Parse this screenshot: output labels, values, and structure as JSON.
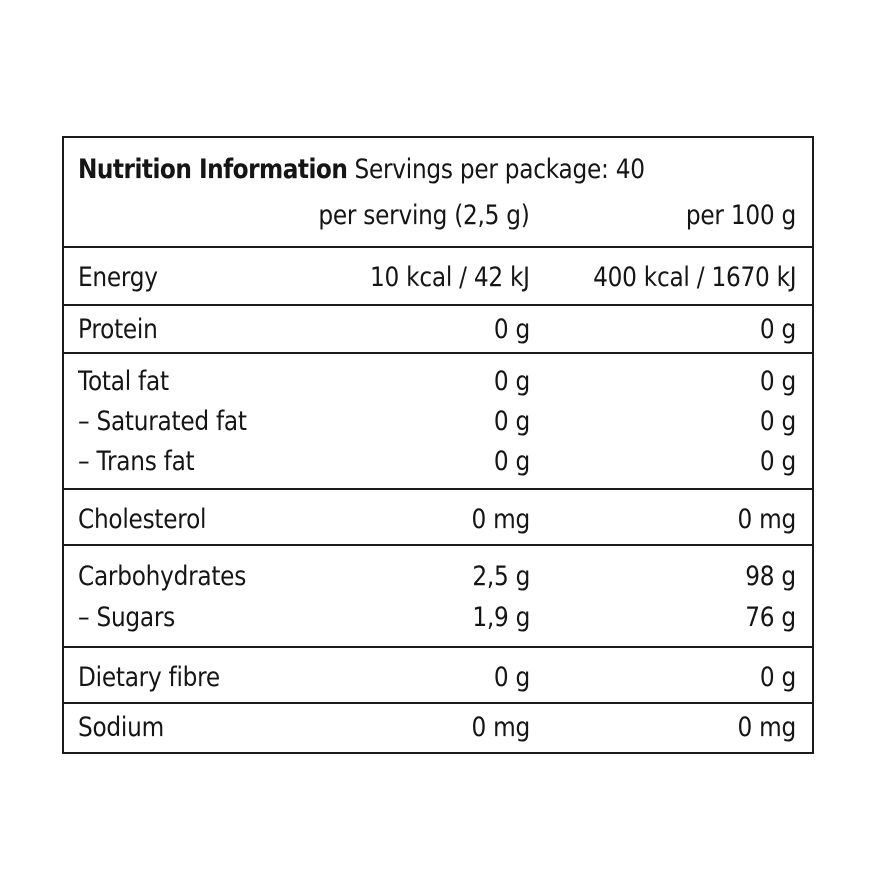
{
  "header": {
    "title": "Nutrition Information",
    "servings": "Servings per package: 40",
    "col_serving": "per serving (2,5 g)",
    "col_100g": "per 100 g"
  },
  "rows": {
    "energy": {
      "label": "Energy",
      "per_serving": "10 kcal / 42 kJ",
      "per_100g": "400 kcal / 1670 kJ"
    },
    "protein": {
      "label": "Protein",
      "per_serving": "0 g",
      "per_100g": "0 g"
    },
    "total_fat": {
      "label": "Total fat",
      "per_serving": "0 g",
      "per_100g": "0 g"
    },
    "saturated_fat": {
      "label": "– Saturated fat",
      "per_serving": "0 g",
      "per_100g": "0 g"
    },
    "trans_fat": {
      "label": "– Trans fat",
      "per_serving": "0 g",
      "per_100g": "0 g"
    },
    "cholesterol": {
      "label": "Cholesterol",
      "per_serving": "0 mg",
      "per_100g": "0 mg"
    },
    "carbohydrates": {
      "label": "Carbohydrates",
      "per_serving": "2,5 g",
      "per_100g": "98 g"
    },
    "sugars": {
      "label": "– Sugars",
      "per_serving": "1,9 g",
      "per_100g": "76 g"
    },
    "dietary_fibre": {
      "label": "Dietary fibre",
      "per_serving": "0 g",
      "per_100g": "0 g"
    },
    "sodium": {
      "label": "Sodium",
      "per_serving": "0 mg",
      "per_100g": "0 mg"
    }
  }
}
